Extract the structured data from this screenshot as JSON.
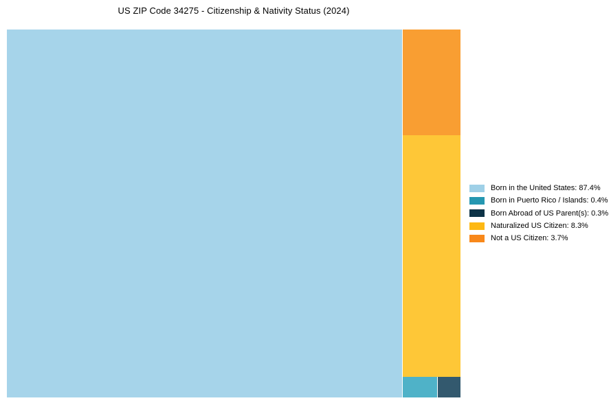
{
  "title": "US ZIP Code 34275 - Citizenship & Nativity Status (2024)",
  "chart_data": {
    "type": "treemap",
    "title": "US ZIP Code 34275 - Citizenship & Nativity Status (2024)",
    "categories": [
      "Born in the United States",
      "Born in Puerto Rico / Islands",
      "Born Abroad of US Parent(s)",
      "Naturalized US Citizen",
      "Not a US Citizen"
    ],
    "values": [
      87.4,
      0.4,
      0.3,
      8.3,
      3.7
    ],
    "unit": "%",
    "block_colors": [
      "#a6d4ea",
      "#4fb2c8",
      "#33596e",
      "#fec737",
      "#f99e32"
    ],
    "legend_colors": [
      "#9fd0e7",
      "#2597b1",
      "#0d3347",
      "#fdb813",
      "#f8881a"
    ],
    "legend_position": "right-center",
    "grid": false
  },
  "legend": {
    "items": [
      {
        "label": "Born in the United States: 87.4%",
        "color": "#9fd0e7"
      },
      {
        "label": "Born in Puerto Rico / Islands: 0.4%",
        "color": "#2597b1"
      },
      {
        "label": "Born Abroad of US Parent(s): 0.3%",
        "color": "#0d3347"
      },
      {
        "label": "Naturalized US Citizen: 8.3%",
        "color": "#fdb813"
      },
      {
        "label": "Not a US Citizen: 3.7%",
        "color": "#f8881a"
      }
    ]
  }
}
